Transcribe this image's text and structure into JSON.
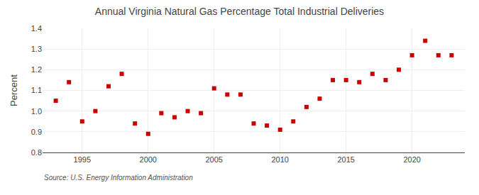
{
  "chart_data": {
    "type": "scatter",
    "title": "Annual Virginia Natural Gas Percentage Total Industrial Deliveries",
    "ylabel": "Percent",
    "annotations": [
      "Source: U.S. Energy Information Administration"
    ],
    "x": [
      1993,
      1994,
      1995,
      1996,
      1997,
      1998,
      1999,
      2000,
      2001,
      2002,
      2003,
      2004,
      2005,
      2006,
      2007,
      2008,
      2009,
      2010,
      2011,
      2012,
      2013,
      2014,
      2015,
      2016,
      2017,
      2018,
      2019,
      2020,
      2021,
      2022,
      2023
    ],
    "values": [
      1.05,
      1.14,
      0.95,
      1.0,
      1.12,
      1.18,
      0.94,
      0.89,
      0.99,
      0.97,
      1.0,
      0.99,
      1.11,
      1.08,
      1.08,
      0.94,
      0.93,
      0.91,
      0.95,
      1.02,
      1.06,
      1.15,
      1.15,
      1.14,
      1.18,
      1.15,
      1.2,
      1.27,
      1.34,
      1.27,
      1.27
    ],
    "color": "#cc0000",
    "marker": "square",
    "xlim": [
      1992,
      2024
    ],
    "xticks": [
      1995,
      2000,
      2005,
      2010,
      2015,
      2020
    ],
    "ylim": [
      0.8,
      1.4
    ],
    "yticks": [
      0.8,
      0.9,
      {
        "value": 1.0,
        "label": "1.0"
      },
      1.1,
      1.2,
      1.3,
      1.4
    ],
    "grid": true
  }
}
